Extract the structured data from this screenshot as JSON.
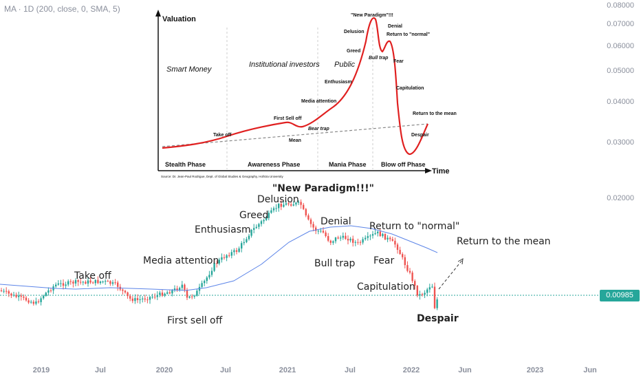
{
  "indicator_label": "MA · 1D (200, close, 0, SMA, 5)",
  "current_price": "0.00985",
  "colors": {
    "up": "#26a69a",
    "down": "#ef5350",
    "ma": "#5b84e8",
    "price_line": "#26a69a",
    "inset_curve": "#e02020"
  },
  "chart_data": {
    "type": "candlestick",
    "x_axis_ticks": [
      "2019",
      "Jul",
      "2020",
      "Jul",
      "2021",
      "Jul",
      "2022",
      "Jun",
      "2023",
      "Jun"
    ],
    "y_axis_ticks": [
      "0.08000",
      "0.07000",
      "0.06000",
      "0.05000",
      "0.04000",
      "0.03000",
      "0.02000"
    ],
    "scale": "log",
    "ma_period": 200,
    "annotations": [
      "\"New Paradigm!!!\"",
      "Delusion",
      "Greed",
      "Enthusiasm",
      "Denial",
      "Return to \"normal\"",
      "Media attention",
      "Bull trap",
      "Return to the mean",
      "Take off",
      "Fear",
      "Capitulation",
      "First sell off",
      "Despair"
    ]
  },
  "inset": {
    "y_label": "Valuation",
    "x_label": "Time",
    "groups": [
      "Smart Money",
      "Institutional investors",
      "Public"
    ],
    "phases": [
      "Stealth Phase",
      "Awareness Phase",
      "Mania Phase",
      "Blow off Phase"
    ],
    "labels": [
      "\"New Paradigm\"!!!",
      "Delusion",
      "Denial",
      "Return to \"normal\"",
      "Greed",
      "Bull trap",
      "Fear",
      "Public",
      "Enthusiasm",
      "Capitulation",
      "Media attention",
      "First Sell off",
      "Return to the mean",
      "Take off",
      "Bear trap",
      "Despair",
      "Mean"
    ],
    "source": "Source: Dr. Jean-Paul Rodrigue, Dept. of Global Studies & Geography, Hofstra University"
  }
}
